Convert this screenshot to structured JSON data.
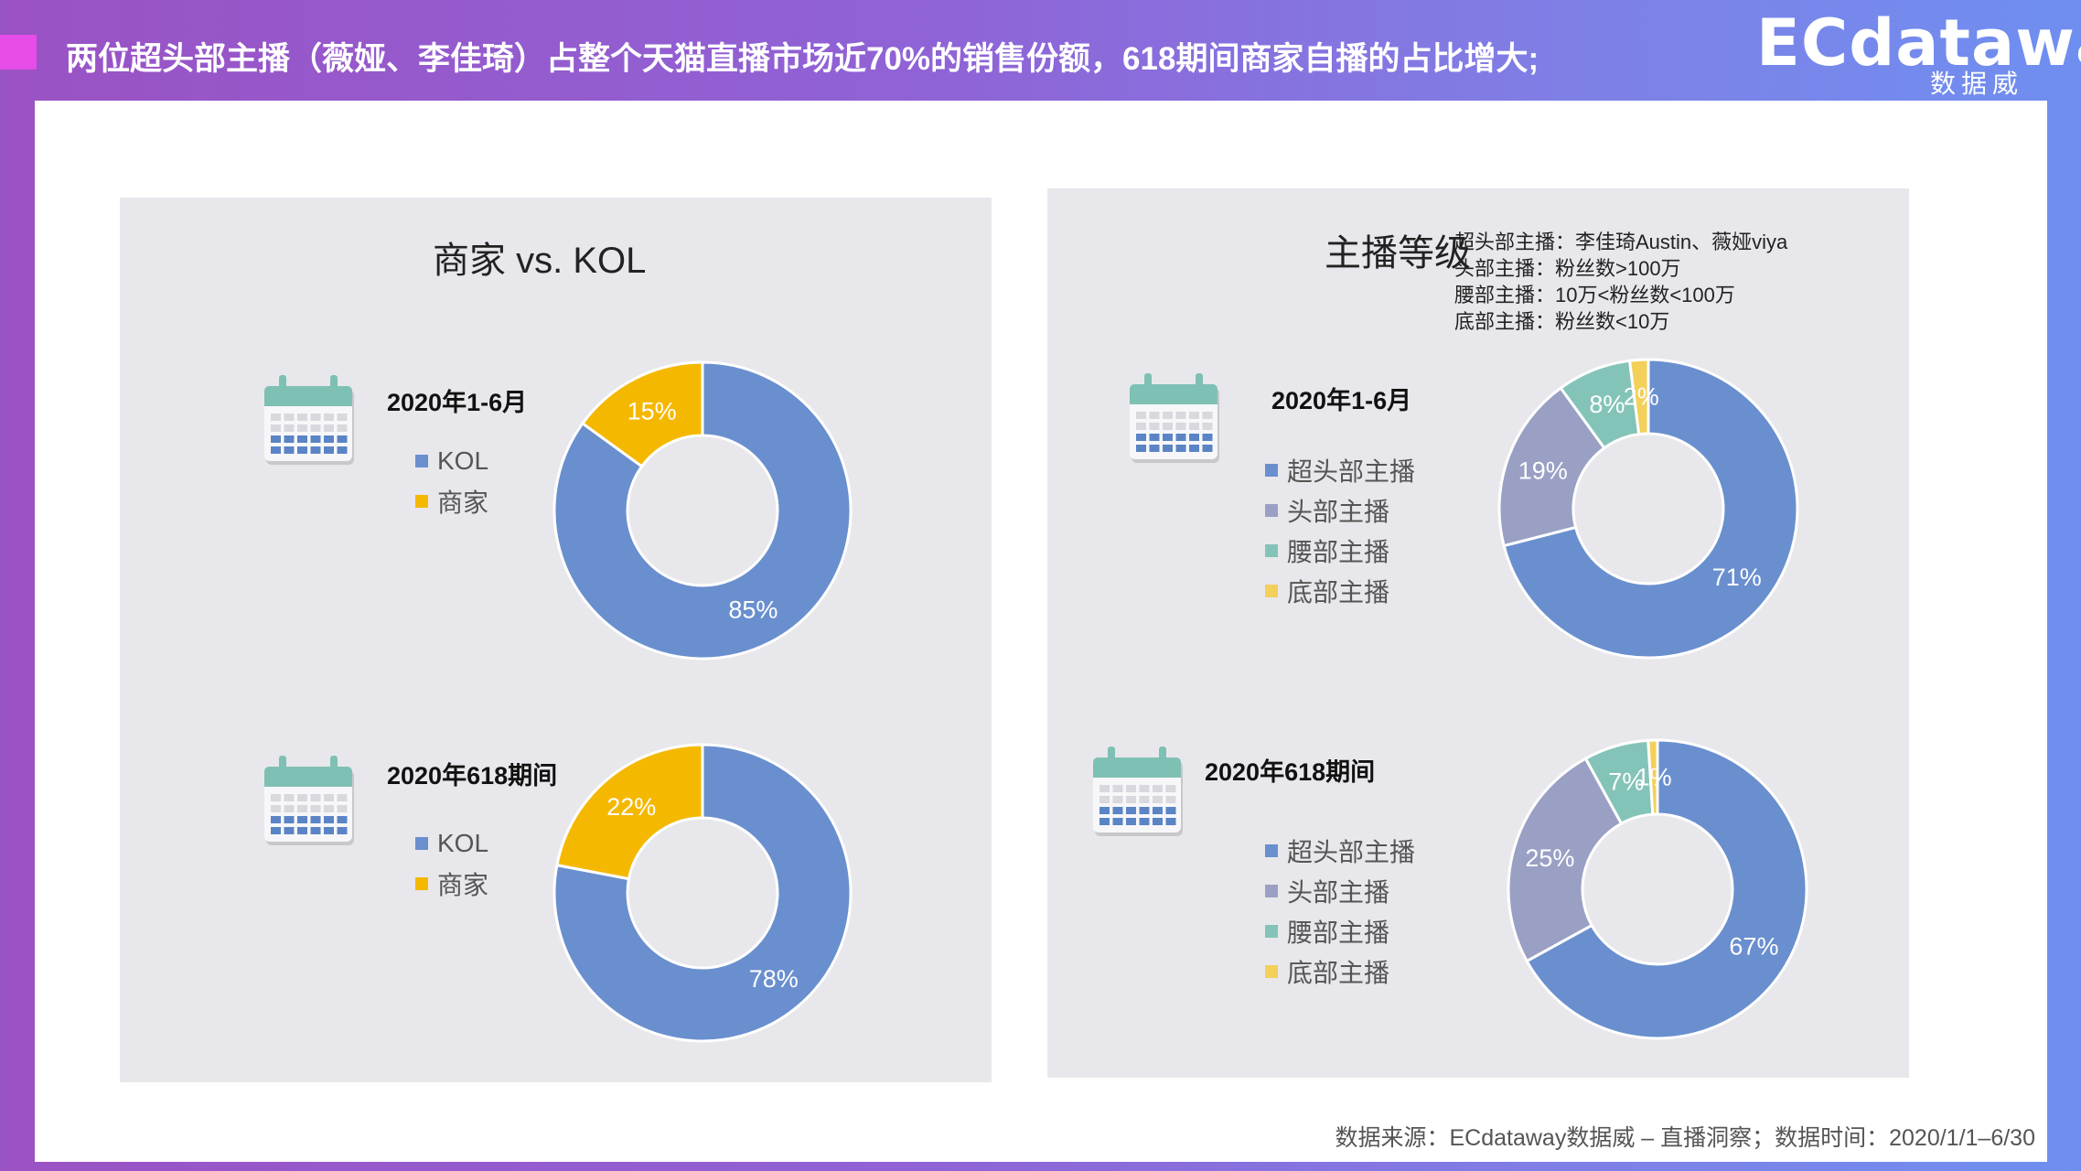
{
  "header": {
    "title": "两位超头部主播（薇娅、李佳琦）占整个天猫直播市场近70%的销售份额，618期间商家自播的占比增大;",
    "logo_main": "ECdataway",
    "logo_sub": "数据威"
  },
  "colors": {
    "kol": "#6a8fcf",
    "merchant": "#f5b800",
    "super_head": "#6a8fcf",
    "head": "#9aa0c4",
    "waist": "#84c4b8",
    "bottom": "#f2d05a"
  },
  "left_panel": {
    "title": "商家 vs. KOL",
    "legend": [
      "KOL",
      "商家"
    ]
  },
  "right_panel": {
    "title": "主播等级",
    "legend": [
      "超头部主播",
      "头部主播",
      "腰部主播",
      "底部主播"
    ],
    "notes": [
      "超头部主播：李佳琦Austin、薇娅viya",
      "头部主播：粉丝数>100万",
      "腰部主播：10万<粉丝数<100万",
      "底部主播：粉丝数<10万"
    ]
  },
  "chart_data": [
    {
      "type": "pie",
      "title": "2020年1-6月",
      "categories": [
        "KOL",
        "商家"
      ],
      "values": [
        85,
        15
      ],
      "labels": [
        "85%",
        "15%"
      ]
    },
    {
      "type": "pie",
      "title": "2020年618期间",
      "categories": [
        "KOL",
        "商家"
      ],
      "values": [
        78,
        22
      ],
      "labels": [
        "78%",
        "22%"
      ]
    },
    {
      "type": "pie",
      "title": "2020年1-6月",
      "categories": [
        "超头部主播",
        "头部主播",
        "腰部主播",
        "底部主播"
      ],
      "values": [
        71,
        19,
        8,
        2
      ],
      "labels": [
        "71%",
        "19%",
        "8%",
        "2%"
      ]
    },
    {
      "type": "pie",
      "title": "2020年618期间",
      "categories": [
        "超头部主播",
        "头部主播",
        "腰部主播",
        "底部主播"
      ],
      "values": [
        67,
        25,
        7,
        1
      ],
      "labels": [
        "67%",
        "25%",
        "7%",
        "1%"
      ]
    }
  ],
  "footer": {
    "source": "数据来源：ECdataway数据威 – 直播洞察；数据时间：2020/1/1–6/30"
  }
}
